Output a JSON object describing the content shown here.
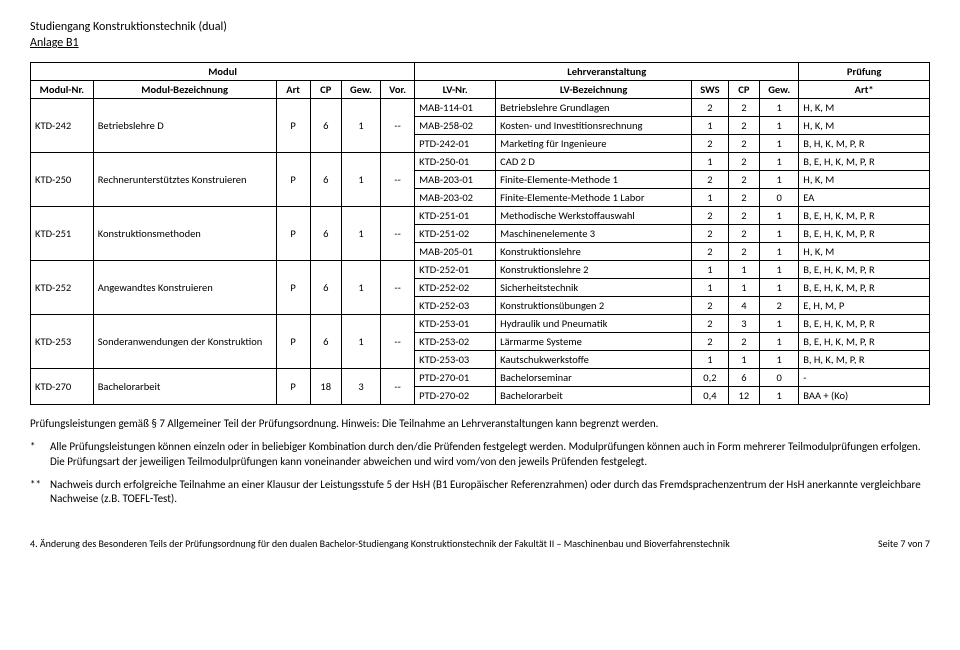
{
  "header": {
    "line1": "Studiengang Konstruktionstechnik (dual)",
    "line2": "Anlage B1"
  },
  "sections": {
    "modul": "Modul",
    "lv": "Lehrveranstaltung",
    "pruef": "Prüfung"
  },
  "cols": {
    "modnr": "Modul-Nr.",
    "modbez": "Modul-Bezeichnung",
    "art": "Art",
    "cp": "CP",
    "gew": "Gew.",
    "vor": "Vor.",
    "lvnr": "LV-Nr.",
    "lvbez": "LV-Bezeichnung",
    "sws": "SWS",
    "cp2": "CP",
    "gew2": "Gew.",
    "artp": "Art*"
  },
  "modules": [
    {
      "nr": "KTD-242",
      "bez": "Betriebslehre D",
      "art": "P",
      "cp": "6",
      "gew": "1",
      "vor": "--",
      "lvs": [
        {
          "nr": "MAB-114-01",
          "bez": "Betriebslehre Grundlagen",
          "sws": "2",
          "cp": "2",
          "gew": "1",
          "artp": "H, K, M"
        },
        {
          "nr": "MAB-258-02",
          "bez": "Kosten- und Investitionsrechnung",
          "sws": "1",
          "cp": "2",
          "gew": "1",
          "artp": "H, K, M"
        },
        {
          "nr": "PTD-242-01",
          "bez": "Marketing für Ingenieure",
          "sws": "2",
          "cp": "2",
          "gew": "1",
          "artp": "B, H, K, M, P, R"
        }
      ]
    },
    {
      "nr": "KTD-250",
      "bez": "Rechnerunterstütztes Konstruieren",
      "art": "P",
      "cp": "6",
      "gew": "1",
      "vor": "--",
      "lvs": [
        {
          "nr": "KTD-250-01",
          "bez": "CAD 2 D",
          "sws": "1",
          "cp": "2",
          "gew": "1",
          "artp": "B, E, H, K, M, P, R"
        },
        {
          "nr": "MAB-203-01",
          "bez": "Finite-Elemente-Methode 1",
          "sws": "2",
          "cp": "2",
          "gew": "1",
          "artp": "H, K, M"
        },
        {
          "nr": "MAB-203-02",
          "bez": "Finite-Elemente-Methode 1 Labor",
          "sws": "1",
          "cp": "2",
          "gew": "0",
          "artp": "EA"
        }
      ]
    },
    {
      "nr": "KTD-251",
      "bez": "Konstruktionsmethoden",
      "art": "P",
      "cp": "6",
      "gew": "1",
      "vor": "--",
      "lvs": [
        {
          "nr": "KTD-251-01",
          "bez": "Methodische Werkstoffauswahl",
          "sws": "2",
          "cp": "2",
          "gew": "1",
          "artp": "B, E, H, K, M, P, R"
        },
        {
          "nr": "KTD-251-02",
          "bez": "Maschinenelemente 3",
          "sws": "2",
          "cp": "2",
          "gew": "1",
          "artp": "B, E, H, K, M, P, R"
        },
        {
          "nr": "MAB-205-01",
          "bez": "Konstruktionslehre",
          "sws": "2",
          "cp": "2",
          "gew": "1",
          "artp": "H, K, M"
        }
      ]
    },
    {
      "nr": "KTD-252",
      "bez": "Angewandtes Konstruieren",
      "art": "P",
      "cp": "6",
      "gew": "1",
      "vor": "--",
      "lvs": [
        {
          "nr": "KTD-252-01",
          "bez": "Konstruktionslehre 2",
          "sws": "1",
          "cp": "1",
          "gew": "1",
          "artp": "B, E, H, K, M, P, R"
        },
        {
          "nr": "KTD-252-02",
          "bez": "Sicherheitstechnik",
          "sws": "1",
          "cp": "1",
          "gew": "1",
          "artp": "B, E, H, K, M, P, R"
        },
        {
          "nr": "KTD-252-03",
          "bez": "Konstruktionsübungen 2",
          "sws": "2",
          "cp": "4",
          "gew": "2",
          "artp": "E, H, M, P"
        }
      ]
    },
    {
      "nr": "KTD-253",
      "bez": "Sonderanwendungen der Konstruktion",
      "art": "P",
      "cp": "6",
      "gew": "1",
      "vor": "--",
      "lvs": [
        {
          "nr": "KTD-253-01",
          "bez": "Hydraulik und Pneumatik",
          "sws": "2",
          "cp": "3",
          "gew": "1",
          "artp": "B, E, H, K, M, P, R"
        },
        {
          "nr": "KTD-253-02",
          "bez": "Lärmarme Systeme",
          "sws": "2",
          "cp": "2",
          "gew": "1",
          "artp": "B, E, H, K, M, P, R"
        },
        {
          "nr": "KTD-253-03",
          "bez": "Kautschukwerkstoffe",
          "sws": "1",
          "cp": "1",
          "gew": "1",
          "artp": "B, H, K, M, P, R"
        }
      ]
    },
    {
      "nr": "KTD-270",
      "bez": "Bachelorarbeit",
      "art": "P",
      "cp": "18",
      "gew": "3",
      "vor": "--",
      "lvs": [
        {
          "nr": "PTD-270-01",
          "bez": "Bachelorseminar",
          "sws": "0,2",
          "cp": "6",
          "gew": "0",
          "artp": "-"
        },
        {
          "nr": "PTD-270-02",
          "bez": "Bachelorarbeit",
          "sws": "0,4",
          "cp": "12",
          "gew": "1",
          "artp": "BAA + (Ko)"
        }
      ]
    }
  ],
  "notes": {
    "p1": "Prüfungsleistungen gemäß § 7 Allgemeiner Teil der Prüfungsordnung. Hinweis: Die Teilnahme an Lehrveranstaltungen kann begrenzt werden.",
    "star_mark": "*",
    "star": "Alle Prüfungsleistungen können einzeln oder in beliebiger Kombination durch den/die Prüfenden festgelegt werden. Modulprüfungen können auch in Form mehrerer Teilmodulprüfungen erfolgen. Die Prüfungsart der jeweiligen Teilmodulprüfungen kann voneinander abweichen und wird vom/von den jeweils Prüfenden festgelegt.",
    "dstar_mark": "**",
    "dstar": "Nachweis durch erfolgreiche Teilnahme an einer Klausur der Leistungsstufe 5 der HsH (B1 Europäischer Referenzrahmen) oder durch das Fremdsprachenzentrum der HsH anerkannte vergleichbare Nachweise (z.B. TOEFL-Test)."
  },
  "footer": {
    "left": "4. Änderung des Besonderen Teils der Prüfungsordnung für den dualen Bachelor-Studiengang Konstruktionstechnik der Fakultät II – Maschinenbau und Bioverfahrenstechnik",
    "right": "Seite 7 von 7"
  }
}
